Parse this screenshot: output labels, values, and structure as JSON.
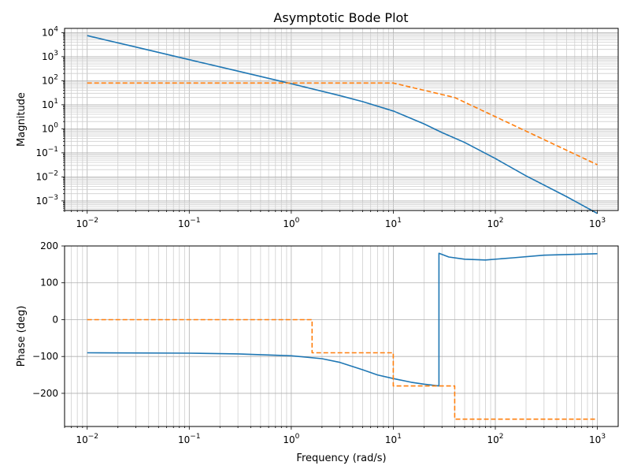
{
  "chart_data": [
    {
      "type": "line",
      "title": "Asymptotic Bode Plot",
      "xlabel": "",
      "ylabel": "Magnitude",
      "x_scale": "log",
      "y_scale": "log",
      "xlim": [
        0.006,
        1600
      ],
      "ylim": [
        0.0004,
        15000
      ],
      "grid": "both (major and minor)",
      "x_ticks": [
        {
          "value": 0.01,
          "base": "10",
          "exp": "−2"
        },
        {
          "value": 0.1,
          "base": "10",
          "exp": "−1"
        },
        {
          "value": 1,
          "base": "10",
          "exp": "0"
        },
        {
          "value": 10,
          "base": "10",
          "exp": "1"
        },
        {
          "value": 100,
          "base": "10",
          "exp": "2"
        },
        {
          "value": 1000,
          "base": "10",
          "exp": "3"
        }
      ],
      "y_ticks": [
        {
          "value": 0.001,
          "base": "10",
          "exp": "−3"
        },
        {
          "value": 0.01,
          "base": "10",
          "exp": "−2"
        },
        {
          "value": 0.1,
          "base": "10",
          "exp": "−1"
        },
        {
          "value": 1,
          "base": "10",
          "exp": "0"
        },
        {
          "value": 10,
          "base": "10",
          "exp": "1"
        },
        {
          "value": 100,
          "base": "10",
          "exp": "2"
        },
        {
          "value": 1000,
          "base": "10",
          "exp": "3"
        },
        {
          "value": 10000,
          "base": "10",
          "exp": "4"
        }
      ],
      "series": [
        {
          "color": "#1f77b4",
          "dash": "solid",
          "x": [
            0.01,
            0.03,
            0.1,
            0.3,
            1,
            3,
            5,
            10,
            20,
            30,
            50,
            100,
            200,
            500,
            1000
          ],
          "values": [
            7500,
            2500,
            750,
            250,
            75,
            24,
            13.5,
            5.5,
            1.6,
            0.7,
            0.27,
            0.058,
            0.011,
            0.0015,
            0.0003
          ]
        },
        {
          "color": "#ff7f0e",
          "dash": "dashed",
          "x": [
            0.01,
            1,
            10,
            20,
            40,
            100,
            1000
          ],
          "values": [
            80,
            80,
            80,
            40,
            20,
            3.2,
            0.032
          ]
        }
      ]
    },
    {
      "type": "line",
      "title": "",
      "xlabel": "Frequency (rad/s)",
      "ylabel": "Phase (deg)",
      "x_scale": "log",
      "y_scale": "linear",
      "xlim": [
        0.006,
        1600
      ],
      "ylim": [
        -290,
        200
      ],
      "grid": "both (x minor, y major)",
      "x_ticks": [
        {
          "value": 0.01,
          "base": "10",
          "exp": "−2"
        },
        {
          "value": 0.1,
          "base": "10",
          "exp": "−1"
        },
        {
          "value": 1,
          "base": "10",
          "exp": "0"
        },
        {
          "value": 10,
          "base": "10",
          "exp": "1"
        },
        {
          "value": 100,
          "base": "10",
          "exp": "2"
        },
        {
          "value": 1000,
          "base": "10",
          "exp": "3"
        }
      ],
      "y_ticks": [
        {
          "value": 200,
          "label": "200"
        },
        {
          "value": 100,
          "label": "100"
        },
        {
          "value": 0,
          "label": "0"
        },
        {
          "value": -100,
          "label": "−100"
        },
        {
          "value": -200,
          "label": "−200"
        }
      ],
      "series": [
        {
          "color": "#1f77b4",
          "dash": "solid",
          "x": [
            0.01,
            0.1,
            0.3,
            1,
            2,
            3,
            5,
            7,
            10,
            15,
            20,
            28,
            28.01,
            35,
            50,
            80,
            150,
            300,
            1000
          ],
          "values": [
            -90,
            -91,
            -93,
            -98,
            -106,
            -116,
            -136,
            -150,
            -160,
            -170,
            -175,
            -180,
            180,
            170,
            164,
            162,
            168,
            175,
            179
          ]
        },
        {
          "color": "#ff7f0e",
          "dash": "dashed",
          "x": [
            0.01,
            1.6,
            1.6,
            10,
            10,
            40,
            40,
            1000
          ],
          "values": [
            0,
            0,
            -90,
            -90,
            -180,
            -180,
            -270,
            -270
          ]
        }
      ]
    }
  ]
}
